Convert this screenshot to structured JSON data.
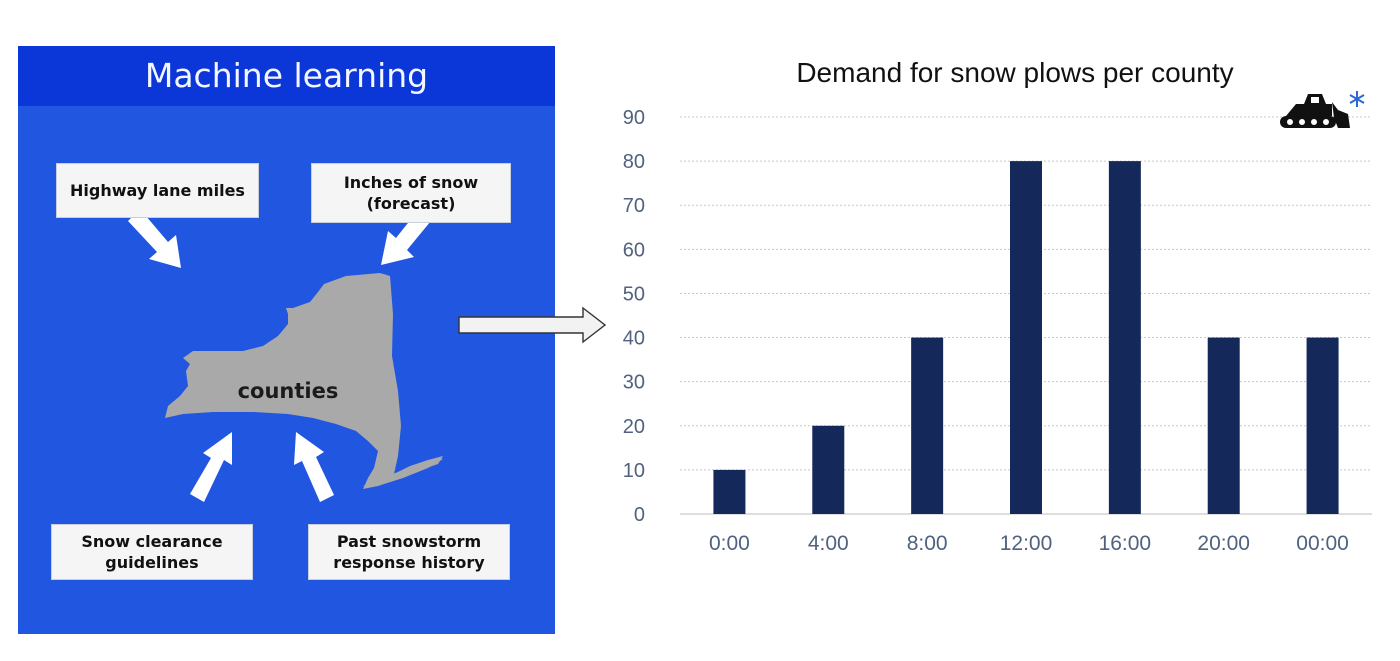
{
  "ml_panel": {
    "title": "Machine learning",
    "inputs": [
      {
        "label": "Highway lane miles"
      },
      {
        "label": "Inches of snow\n(forecast)"
      },
      {
        "label": "Snow clearance\nguidelines"
      },
      {
        "label": "Past snowstorm\nresponse history"
      }
    ],
    "map_label": "counties"
  },
  "colors": {
    "panel_bg": "#2156e0",
    "panel_header": "#0b37d8",
    "bar": "#14285a",
    "map": "#a9a9a9"
  },
  "icons": [
    "snow-plow-icon",
    "snowflake-icon",
    "right-arrow-icon"
  ],
  "chart_data": {
    "type": "bar",
    "title": "Demand for snow plows per county",
    "categories": [
      "0:00",
      "4:00",
      "8:00",
      "12:00",
      "16:00",
      "20:00",
      "00:00"
    ],
    "values": [
      10,
      20,
      40,
      80,
      80,
      40,
      40
    ],
    "ylim": [
      0,
      90
    ],
    "yticks": [
      0,
      10,
      20,
      30,
      40,
      50,
      60,
      70,
      80,
      90
    ],
    "grid": true,
    "legend": "none"
  }
}
